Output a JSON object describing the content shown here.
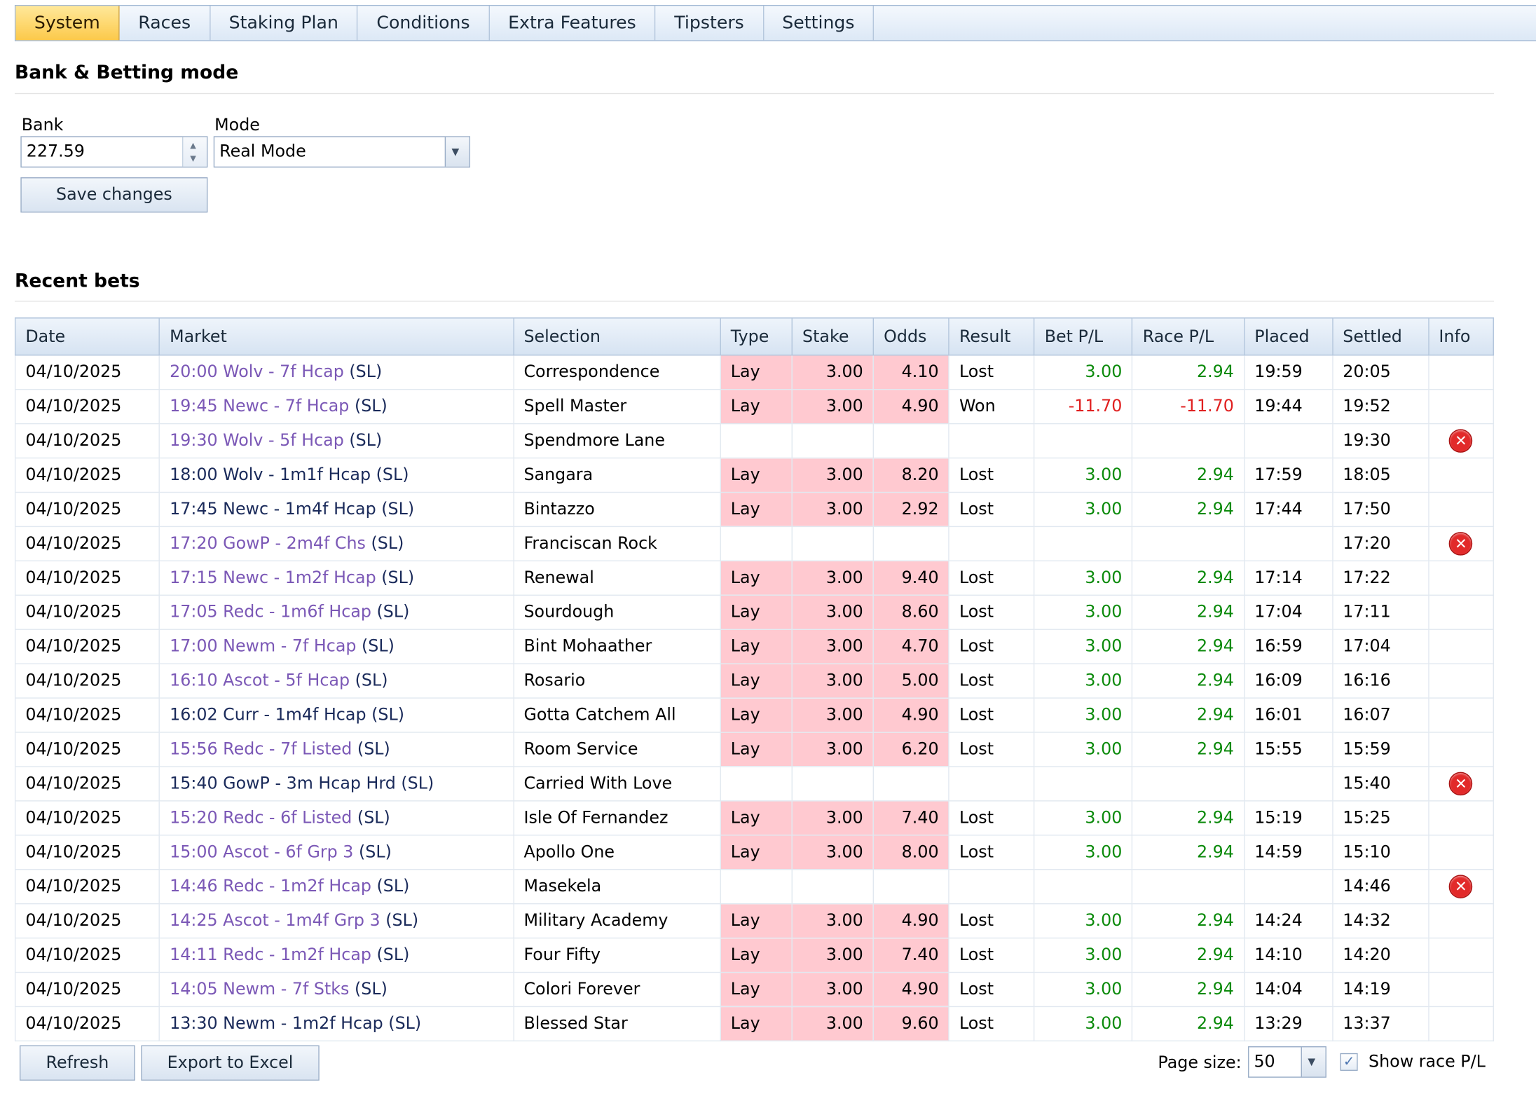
{
  "tabs": [
    {
      "label": "System",
      "active": true
    },
    {
      "label": "Races",
      "active": false
    },
    {
      "label": "Staking Plan",
      "active": false
    },
    {
      "label": "Conditions",
      "active": false
    },
    {
      "label": "Extra Features",
      "active": false
    },
    {
      "label": "Tipsters",
      "active": false
    },
    {
      "label": "Settings",
      "active": false
    }
  ],
  "bank_section": {
    "title": "Bank & Betting mode",
    "bank_label": "Bank",
    "bank_value": "227.59",
    "mode_label": "Mode",
    "mode_value": "Real Mode",
    "save_label": "Save changes"
  },
  "recent_bets": {
    "title": "Recent bets",
    "columns": [
      "Date",
      "Market",
      "Selection",
      "Type",
      "Stake",
      "Odds",
      "Result",
      "Bet P/L",
      "Race P/L",
      "Placed",
      "Settled",
      "Info"
    ],
    "rows": [
      {
        "date": "04/10/2025",
        "market": "20:00 Wolv - 7f Hcap",
        "visited": true,
        "suffix": "(SL)",
        "selection": "Correspondence",
        "type": "Lay",
        "stake": "3.00",
        "odds": "4.10",
        "result": "Lost",
        "bet_pl": "3.00",
        "race_pl": "2.94",
        "placed": "19:59",
        "settled": "20:05",
        "error": false
      },
      {
        "date": "04/10/2025",
        "market": "19:45 Newc - 7f Hcap",
        "visited": true,
        "suffix": "(SL)",
        "selection": "Spell Master",
        "type": "Lay",
        "stake": "3.00",
        "odds": "4.90",
        "result": "Won",
        "bet_pl": "-11.70",
        "race_pl": "-11.70",
        "placed": "19:44",
        "settled": "19:52",
        "error": false
      },
      {
        "date": "04/10/2025",
        "market": "19:30 Wolv - 5f Hcap",
        "visited": true,
        "suffix": "(SL)",
        "selection": "Spendmore Lane",
        "type": "",
        "stake": "",
        "odds": "",
        "result": "",
        "bet_pl": "",
        "race_pl": "",
        "placed": "",
        "settled": "19:30",
        "error": true
      },
      {
        "date": "04/10/2025",
        "market": "18:00 Wolv - 1m1f Hcap",
        "visited": false,
        "suffix": "(SL)",
        "selection": "Sangara",
        "type": "Lay",
        "stake": "3.00",
        "odds": "8.20",
        "result": "Lost",
        "bet_pl": "3.00",
        "race_pl": "2.94",
        "placed": "17:59",
        "settled": "18:05",
        "error": false
      },
      {
        "date": "04/10/2025",
        "market": "17:45 Newc - 1m4f Hcap",
        "visited": false,
        "suffix": "(SL)",
        "selection": "Bintazzo",
        "type": "Lay",
        "stake": "3.00",
        "odds": "2.92",
        "result": "Lost",
        "bet_pl": "3.00",
        "race_pl": "2.94",
        "placed": "17:44",
        "settled": "17:50",
        "error": false
      },
      {
        "date": "04/10/2025",
        "market": "17:20 GowP - 2m4f Chs",
        "visited": true,
        "suffix": "(SL)",
        "selection": "Franciscan Rock",
        "type": "",
        "stake": "",
        "odds": "",
        "result": "",
        "bet_pl": "",
        "race_pl": "",
        "placed": "",
        "settled": "17:20",
        "error": true
      },
      {
        "date": "04/10/2025",
        "market": "17:15 Newc - 1m2f Hcap",
        "visited": true,
        "suffix": "(SL)",
        "selection": "Renewal",
        "type": "Lay",
        "stake": "3.00",
        "odds": "9.40",
        "result": "Lost",
        "bet_pl": "3.00",
        "race_pl": "2.94",
        "placed": "17:14",
        "settled": "17:22",
        "error": false
      },
      {
        "date": "04/10/2025",
        "market": "17:05 Redc - 1m6f Hcap",
        "visited": true,
        "suffix": "(SL)",
        "selection": "Sourdough",
        "type": "Lay",
        "stake": "3.00",
        "odds": "8.60",
        "result": "Lost",
        "bet_pl": "3.00",
        "race_pl": "2.94",
        "placed": "17:04",
        "settled": "17:11",
        "error": false
      },
      {
        "date": "04/10/2025",
        "market": "17:00 Newm - 7f Hcap",
        "visited": true,
        "suffix": "(SL)",
        "selection": "Bint Mohaather",
        "type": "Lay",
        "stake": "3.00",
        "odds": "4.70",
        "result": "Lost",
        "bet_pl": "3.00",
        "race_pl": "2.94",
        "placed": "16:59",
        "settled": "17:04",
        "error": false
      },
      {
        "date": "04/10/2025",
        "market": "16:10 Ascot - 5f Hcap",
        "visited": true,
        "suffix": "(SL)",
        "selection": "Rosario",
        "type": "Lay",
        "stake": "3.00",
        "odds": "5.00",
        "result": "Lost",
        "bet_pl": "3.00",
        "race_pl": "2.94",
        "placed": "16:09",
        "settled": "16:16",
        "error": false
      },
      {
        "date": "04/10/2025",
        "market": "16:02 Curr - 1m4f Hcap",
        "visited": false,
        "suffix": "(SL)",
        "selection": "Gotta Catchem All",
        "type": "Lay",
        "stake": "3.00",
        "odds": "4.90",
        "result": "Lost",
        "bet_pl": "3.00",
        "race_pl": "2.94",
        "placed": "16:01",
        "settled": "16:07",
        "error": false
      },
      {
        "date": "04/10/2025",
        "market": "15:56 Redc - 7f Listed",
        "visited": true,
        "suffix": "(SL)",
        "selection": "Room Service",
        "type": "Lay",
        "stake": "3.00",
        "odds": "6.20",
        "result": "Lost",
        "bet_pl": "3.00",
        "race_pl": "2.94",
        "placed": "15:55",
        "settled": "15:59",
        "error": false
      },
      {
        "date": "04/10/2025",
        "market": "15:40 GowP - 3m Hcap Hrd",
        "visited": false,
        "suffix": "(SL)",
        "selection": "Carried With Love",
        "type": "",
        "stake": "",
        "odds": "",
        "result": "",
        "bet_pl": "",
        "race_pl": "",
        "placed": "",
        "settled": "15:40",
        "error": true
      },
      {
        "date": "04/10/2025",
        "market": "15:20 Redc - 6f Listed",
        "visited": true,
        "suffix": "(SL)",
        "selection": "Isle Of Fernandez",
        "type": "Lay",
        "stake": "3.00",
        "odds": "7.40",
        "result": "Lost",
        "bet_pl": "3.00",
        "race_pl": "2.94",
        "placed": "15:19",
        "settled": "15:25",
        "error": false
      },
      {
        "date": "04/10/2025",
        "market": "15:00 Ascot - 6f Grp 3",
        "visited": true,
        "suffix": "(SL)",
        "selection": "Apollo One",
        "type": "Lay",
        "stake": "3.00",
        "odds": "8.00",
        "result": "Lost",
        "bet_pl": "3.00",
        "race_pl": "2.94",
        "placed": "14:59",
        "settled": "15:10",
        "error": false
      },
      {
        "date": "04/10/2025",
        "market": "14:46 Redc - 1m2f Hcap",
        "visited": true,
        "suffix": "(SL)",
        "selection": "Masekela",
        "type": "",
        "stake": "",
        "odds": "",
        "result": "",
        "bet_pl": "",
        "race_pl": "",
        "placed": "",
        "settled": "14:46",
        "error": true
      },
      {
        "date": "04/10/2025",
        "market": "14:25 Ascot - 1m4f Grp 3",
        "visited": true,
        "suffix": "(SL)",
        "selection": "Military Academy",
        "type": "Lay",
        "stake": "3.00",
        "odds": "4.90",
        "result": "Lost",
        "bet_pl": "3.00",
        "race_pl": "2.94",
        "placed": "14:24",
        "settled": "14:32",
        "error": false
      },
      {
        "date": "04/10/2025",
        "market": "14:11 Redc - 1m2f Hcap",
        "visited": true,
        "suffix": "(SL)",
        "selection": "Four Fifty",
        "type": "Lay",
        "stake": "3.00",
        "odds": "7.40",
        "result": "Lost",
        "bet_pl": "3.00",
        "race_pl": "2.94",
        "placed": "14:10",
        "settled": "14:20",
        "error": false
      },
      {
        "date": "04/10/2025",
        "market": "14:05 Newm - 7f Stks",
        "visited": true,
        "suffix": "(SL)",
        "selection": "Colori Forever",
        "type": "Lay",
        "stake": "3.00",
        "odds": "4.90",
        "result": "Lost",
        "bet_pl": "3.00",
        "race_pl": "2.94",
        "placed": "14:04",
        "settled": "14:19",
        "error": false
      },
      {
        "date": "04/10/2025",
        "market": "13:30 Newm - 1m2f Hcap",
        "visited": false,
        "suffix": "(SL)",
        "selection": "Blessed Star",
        "type": "Lay",
        "stake": "3.00",
        "odds": "9.60",
        "result": "Lost",
        "bet_pl": "3.00",
        "race_pl": "2.94",
        "placed": "13:29",
        "settled": "13:37",
        "error": false
      }
    ]
  },
  "footer": {
    "refresh_label": "Refresh",
    "export_label": "Export to Excel",
    "page_size_label": "Page size:",
    "page_size_value": "50",
    "show_race_pl_label": "Show race P/L",
    "show_race_pl_checked": true
  },
  "icons": {
    "error_icon": "x-circle-icon",
    "dropdown_icon": "chevron-down-icon",
    "spinner_icon": "spinner-arrows-icon",
    "checkbox_icon": "checkmark-icon"
  },
  "colors": {
    "active_tab": "#fcc94a",
    "lay_highlight": "#ffc9d0",
    "profit": "#0b8a0b",
    "loss": "#e02020",
    "visited_link": "#7b58b6",
    "error_icon": "#e22a2a"
  }
}
